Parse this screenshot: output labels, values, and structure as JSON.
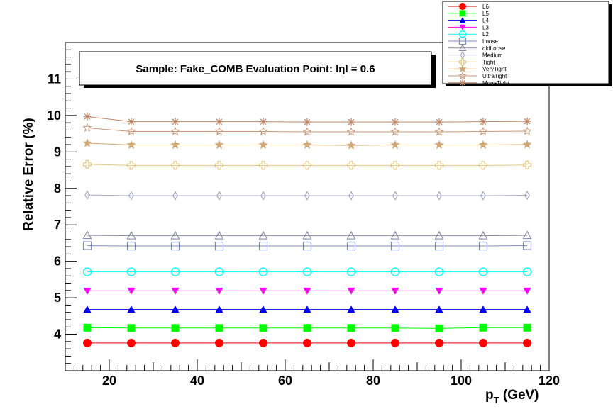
{
  "chart_data": {
    "type": "line",
    "title": "Sample: Fake_COMB Evaluation Point: lηl = 0.6",
    "xlabel_main": "p",
    "xlabel_sub": "T",
    "xlabel_unit": " (GeV)",
    "ylabel": "Relative Error (%)",
    "xlim": [
      10,
      120
    ],
    "ylim": [
      3,
      12
    ],
    "x_ticks": [
      "20",
      "40",
      "60",
      "80",
      "100",
      "120"
    ],
    "y_ticks": [
      "4",
      "5",
      "6",
      "7",
      "8",
      "9",
      "10",
      "11"
    ],
    "x": [
      15,
      25,
      35,
      45,
      55,
      65,
      75,
      85,
      95,
      105,
      115
    ],
    "legend_position": "top-right",
    "series": [
      {
        "name": "L6",
        "color": "#ff0000",
        "marker": "circle-filled",
        "values": [
          3.76,
          3.76,
          3.76,
          3.76,
          3.76,
          3.76,
          3.76,
          3.76,
          3.76,
          3.76,
          3.76
        ]
      },
      {
        "name": "L5",
        "color": "#00ff00",
        "marker": "square-filled",
        "values": [
          4.18,
          4.17,
          4.17,
          4.17,
          4.17,
          4.17,
          4.17,
          4.17,
          4.16,
          4.18,
          4.18
        ]
      },
      {
        "name": "L4",
        "color": "#0000ff",
        "marker": "triangle-up-filled",
        "values": [
          4.68,
          4.68,
          4.68,
          4.68,
          4.68,
          4.68,
          4.68,
          4.68,
          4.68,
          4.68,
          4.68
        ]
      },
      {
        "name": "L3",
        "color": "#ff00ff",
        "marker": "triangle-down-filled",
        "values": [
          5.19,
          5.19,
          5.19,
          5.19,
          5.19,
          5.19,
          5.19,
          5.19,
          5.19,
          5.19,
          5.19
        ]
      },
      {
        "name": "L2",
        "color": "#00ffff",
        "marker": "circle-open",
        "values": [
          5.71,
          5.71,
          5.71,
          5.71,
          5.71,
          5.71,
          5.71,
          5.71,
          5.71,
          5.71,
          5.71
        ]
      },
      {
        "name": "Loose",
        "color": "#7f8fbf",
        "marker": "square-open",
        "values": [
          6.43,
          6.42,
          6.42,
          6.42,
          6.42,
          6.42,
          6.42,
          6.42,
          6.42,
          6.42,
          6.43
        ]
      },
      {
        "name": "oldLoose",
        "color": "#8f8fa8",
        "marker": "triangle-open",
        "values": [
          6.71,
          6.7,
          6.7,
          6.7,
          6.7,
          6.7,
          6.7,
          6.7,
          6.7,
          6.7,
          6.71
        ]
      },
      {
        "name": "Medium",
        "color": "#a8a8c8",
        "marker": "diamond-open",
        "values": [
          7.82,
          7.8,
          7.8,
          7.8,
          7.8,
          7.8,
          7.8,
          7.8,
          7.8,
          7.8,
          7.81
        ]
      },
      {
        "name": "Tight",
        "color": "#e0c888",
        "marker": "cross-open",
        "values": [
          8.66,
          8.63,
          8.63,
          8.63,
          8.63,
          8.63,
          8.63,
          8.63,
          8.63,
          8.63,
          8.64
        ]
      },
      {
        "name": "VeryTight",
        "color": "#d0a878",
        "marker": "star-filled",
        "values": [
          9.24,
          9.19,
          9.19,
          9.19,
          9.19,
          9.19,
          9.18,
          9.19,
          9.19,
          9.19,
          9.2
        ]
      },
      {
        "name": "UltraTight",
        "color": "#c89878",
        "marker": "star-open",
        "values": [
          9.66,
          9.56,
          9.56,
          9.56,
          9.56,
          9.55,
          9.55,
          9.55,
          9.55,
          9.56,
          9.57
        ]
      },
      {
        "name": "MegaTight",
        "color": "#c08868",
        "marker": "asterisk",
        "values": [
          9.97,
          9.83,
          9.83,
          9.83,
          9.83,
          9.82,
          9.82,
          9.82,
          9.82,
          9.83,
          9.84
        ]
      }
    ]
  }
}
